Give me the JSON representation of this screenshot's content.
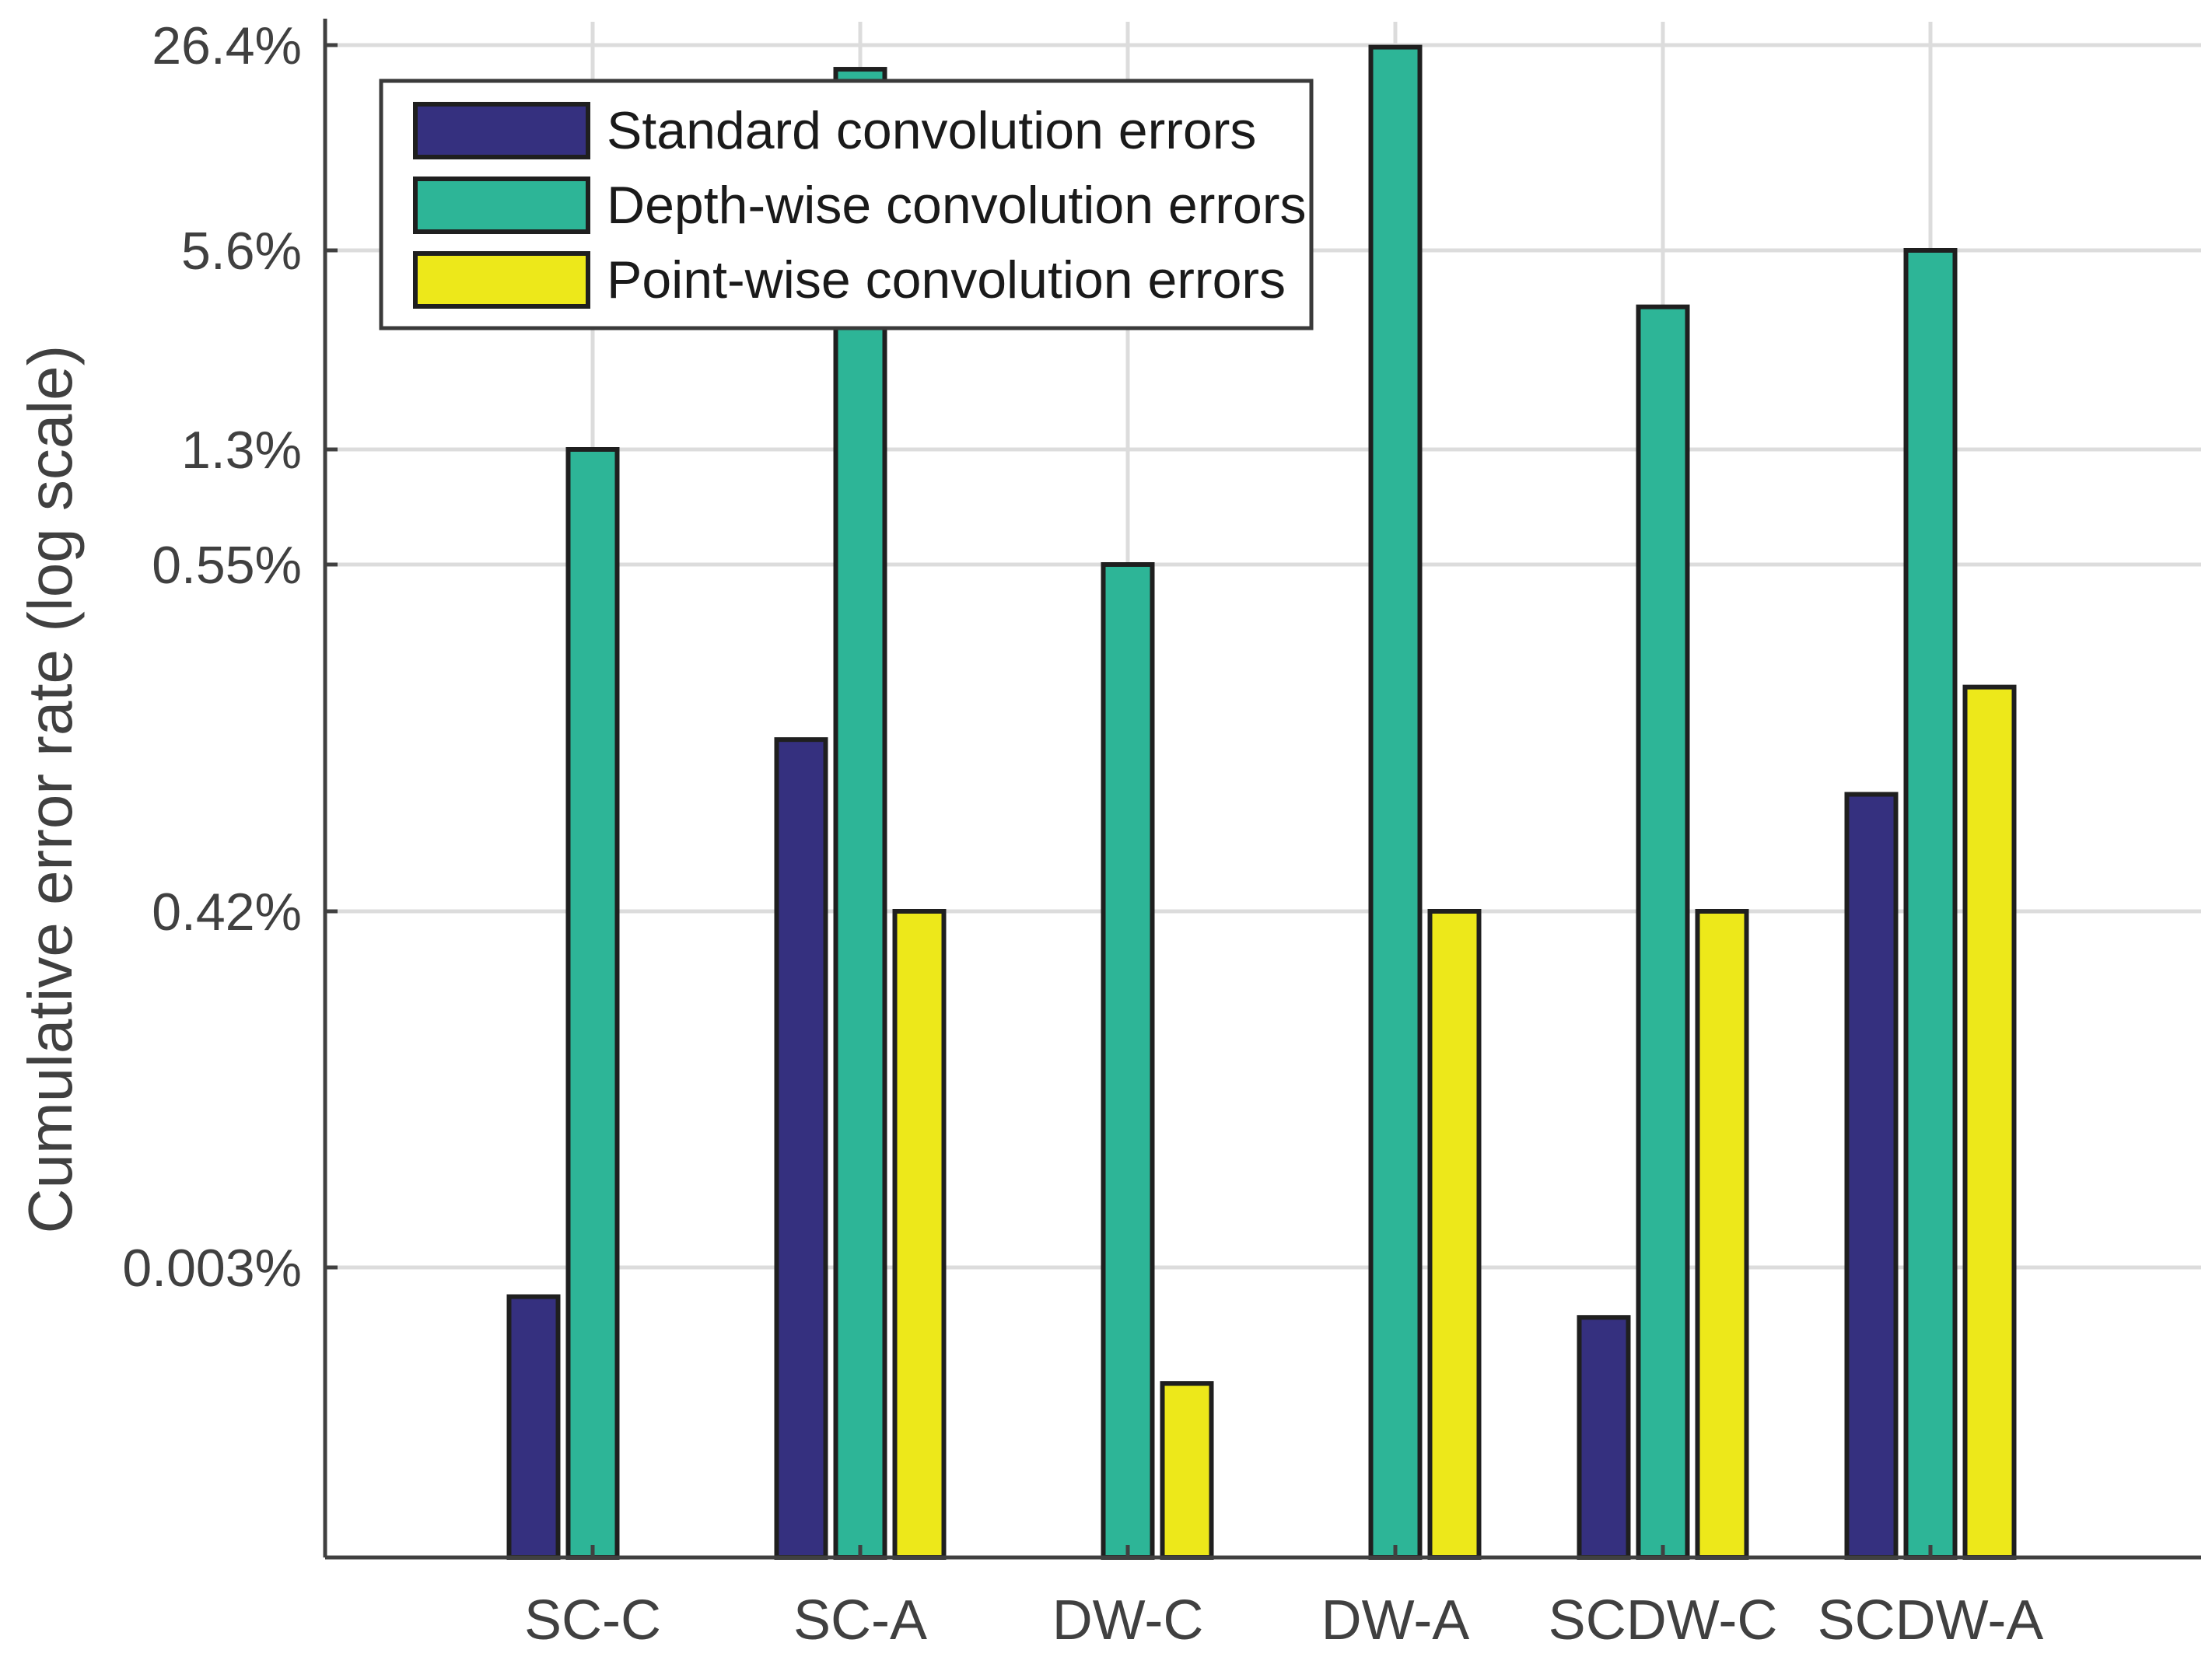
{
  "chart_data": {
    "type": "bar",
    "title": "",
    "xlabel": "",
    "ylabel": "Cumulative error rate (log scale)",
    "yscale": "log (non-uniform tick spacing)",
    "grid": true,
    "legend_position": "top-left",
    "categories": [
      "SC-C",
      "SC-A",
      "DW-C",
      "DW-A",
      "SCDW-C",
      "SCDW-A"
    ],
    "y_ticks": [
      "0.003%",
      "0.42%",
      "0.55%",
      "1.3%",
      "5.6%",
      "26.4%"
    ],
    "y_tick_values": [
      0.003,
      0.42,
      0.55,
      1.3,
      5.6,
      26.4
    ],
    "series": [
      {
        "name": "Standard convolution errors",
        "color": "#35307F",
        "values": [
          0.002,
          0.48,
          null,
          null,
          0.0015,
          0.46
        ]
      },
      {
        "name": "Depth-wise convolution errors",
        "color": "#2DB597",
        "values": [
          1.3,
          22.0,
          0.55,
          26.0,
          3.7,
          5.6
        ]
      },
      {
        "name": "Point-wise convolution errors",
        "color": "#EDE81A",
        "values": [
          null,
          0.42,
          0.0006,
          0.42,
          0.42,
          0.5
        ]
      }
    ]
  }
}
